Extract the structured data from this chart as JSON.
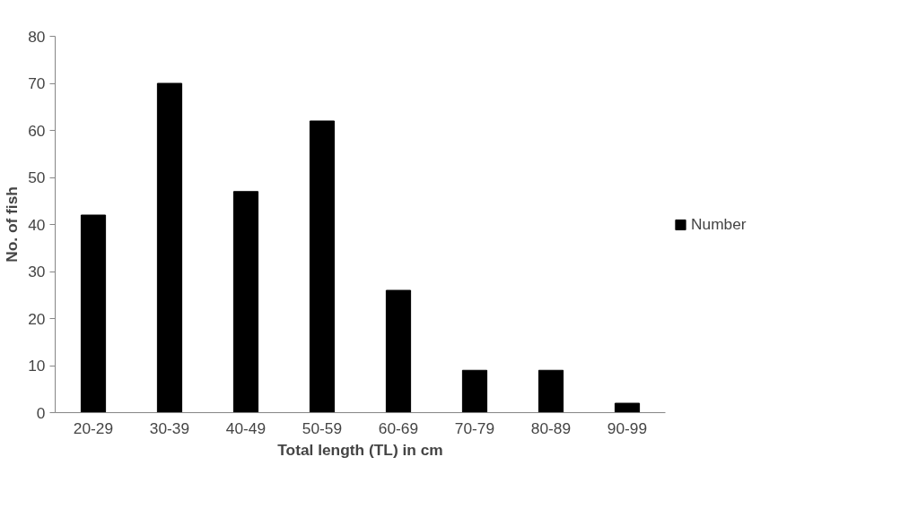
{
  "chart_data": {
    "type": "bar",
    "xlabel": "Total length (TL) in cm",
    "ylabel": "No. of fish",
    "categories": [
      "20-29",
      "30-39",
      "40-49",
      "50-59",
      "60-69",
      "70-79",
      "80-89",
      "90-99"
    ],
    "series": [
      {
        "name": "Number",
        "color": "#000000",
        "values": [
          42,
          70,
          47,
          62,
          26,
          9,
          9,
          2
        ]
      }
    ],
    "ylim": [
      0,
      80
    ],
    "yticks": [
      0,
      10,
      20,
      30,
      40,
      50,
      60,
      70,
      80
    ],
    "grid": false,
    "legend": "right"
  }
}
